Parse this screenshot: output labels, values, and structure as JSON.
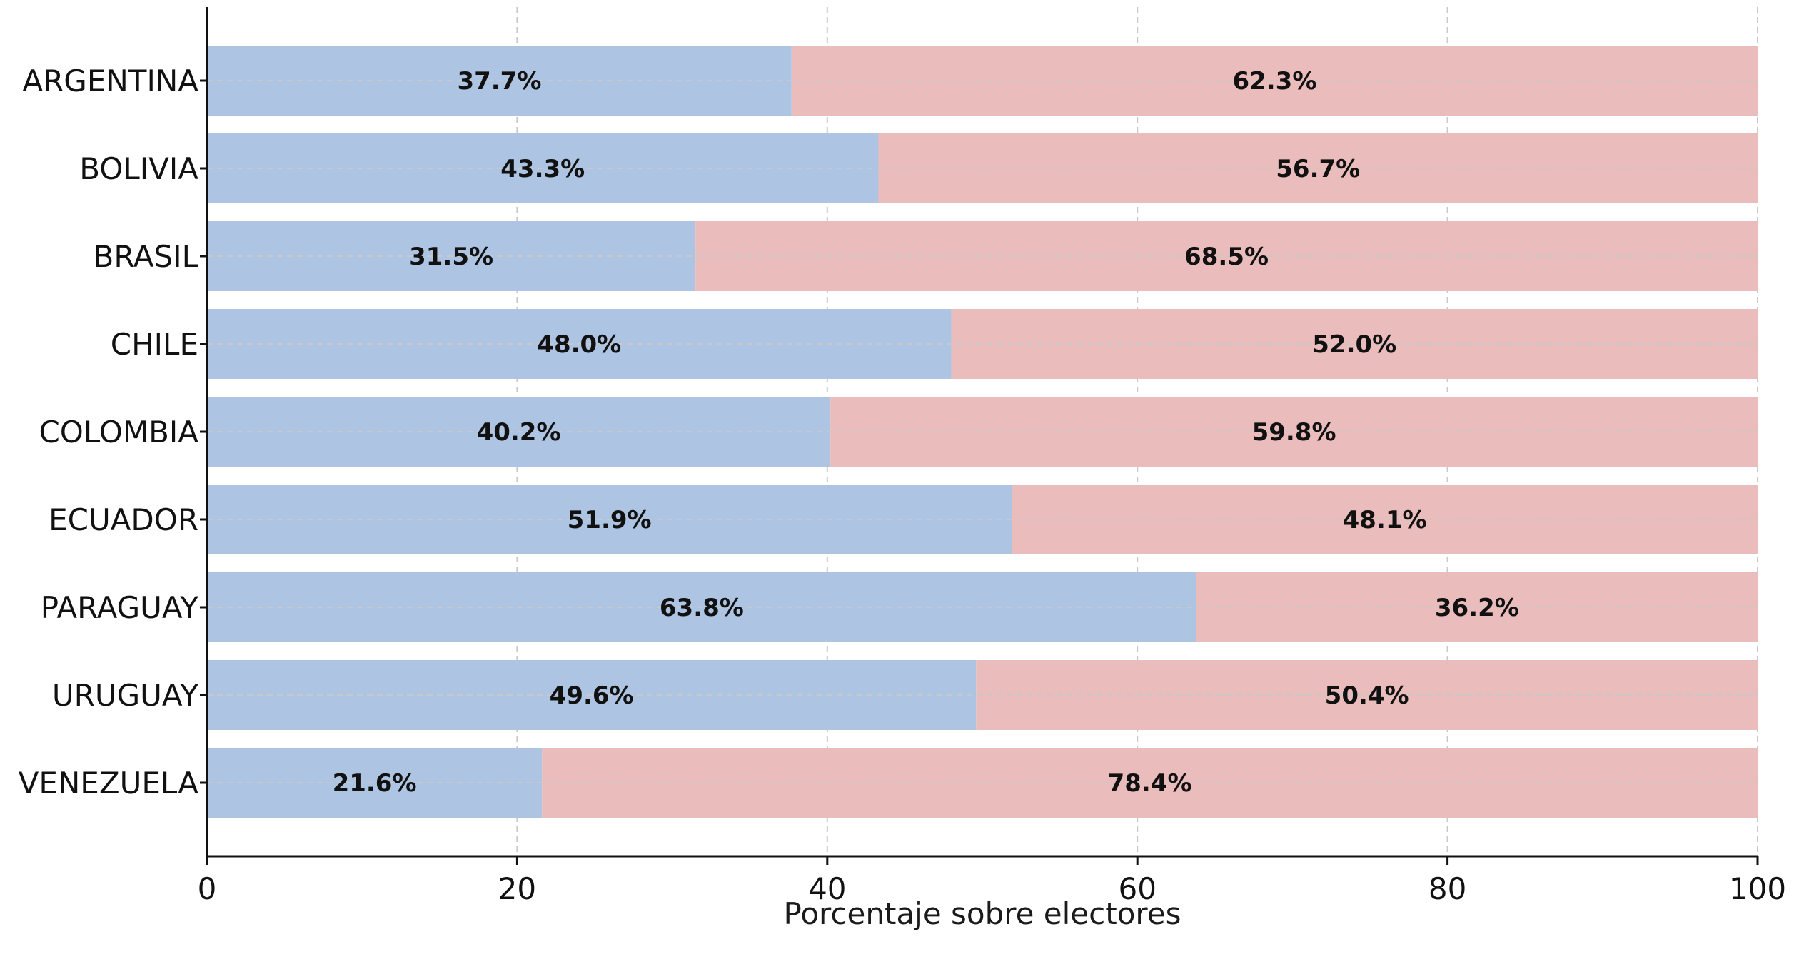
{
  "chart_data": {
    "type": "bar",
    "orientation": "horizontal",
    "stacked": true,
    "categories": [
      "ARGENTINA",
      "BOLIVIA",
      "BRASIL",
      "CHILE",
      "COLOMBIA",
      "ECUADOR",
      "PARAGUAY",
      "URUGUAY",
      "VENEZUELA"
    ],
    "series": [
      {
        "color": "#adc4e3",
        "values": [
          37.7,
          43.3,
          31.5,
          48.0,
          40.2,
          51.9,
          63.8,
          49.6,
          21.6
        ],
        "labels": [
          "37.7%",
          "43.3%",
          "31.5%",
          "48.0%",
          "40.2%",
          "51.9%",
          "63.8%",
          "49.6%",
          "21.6%"
        ]
      },
      {
        "color": "#ebbcbc",
        "values": [
          62.3,
          56.7,
          68.5,
          52.0,
          59.8,
          48.1,
          36.2,
          50.4,
          78.4
        ],
        "labels": [
          "62.3%",
          "56.7%",
          "68.5%",
          "52.0%",
          "59.8%",
          "48.1%",
          "36.2%",
          "50.4%",
          "78.4%"
        ]
      }
    ],
    "xlabel": "Porcentaje sobre electores",
    "ylabel": "",
    "title": "",
    "xlim": [
      0,
      100
    ],
    "xticks": [
      "0",
      "20",
      "40",
      "60",
      "80",
      "100"
    ],
    "grid": true,
    "legend": "none"
  }
}
